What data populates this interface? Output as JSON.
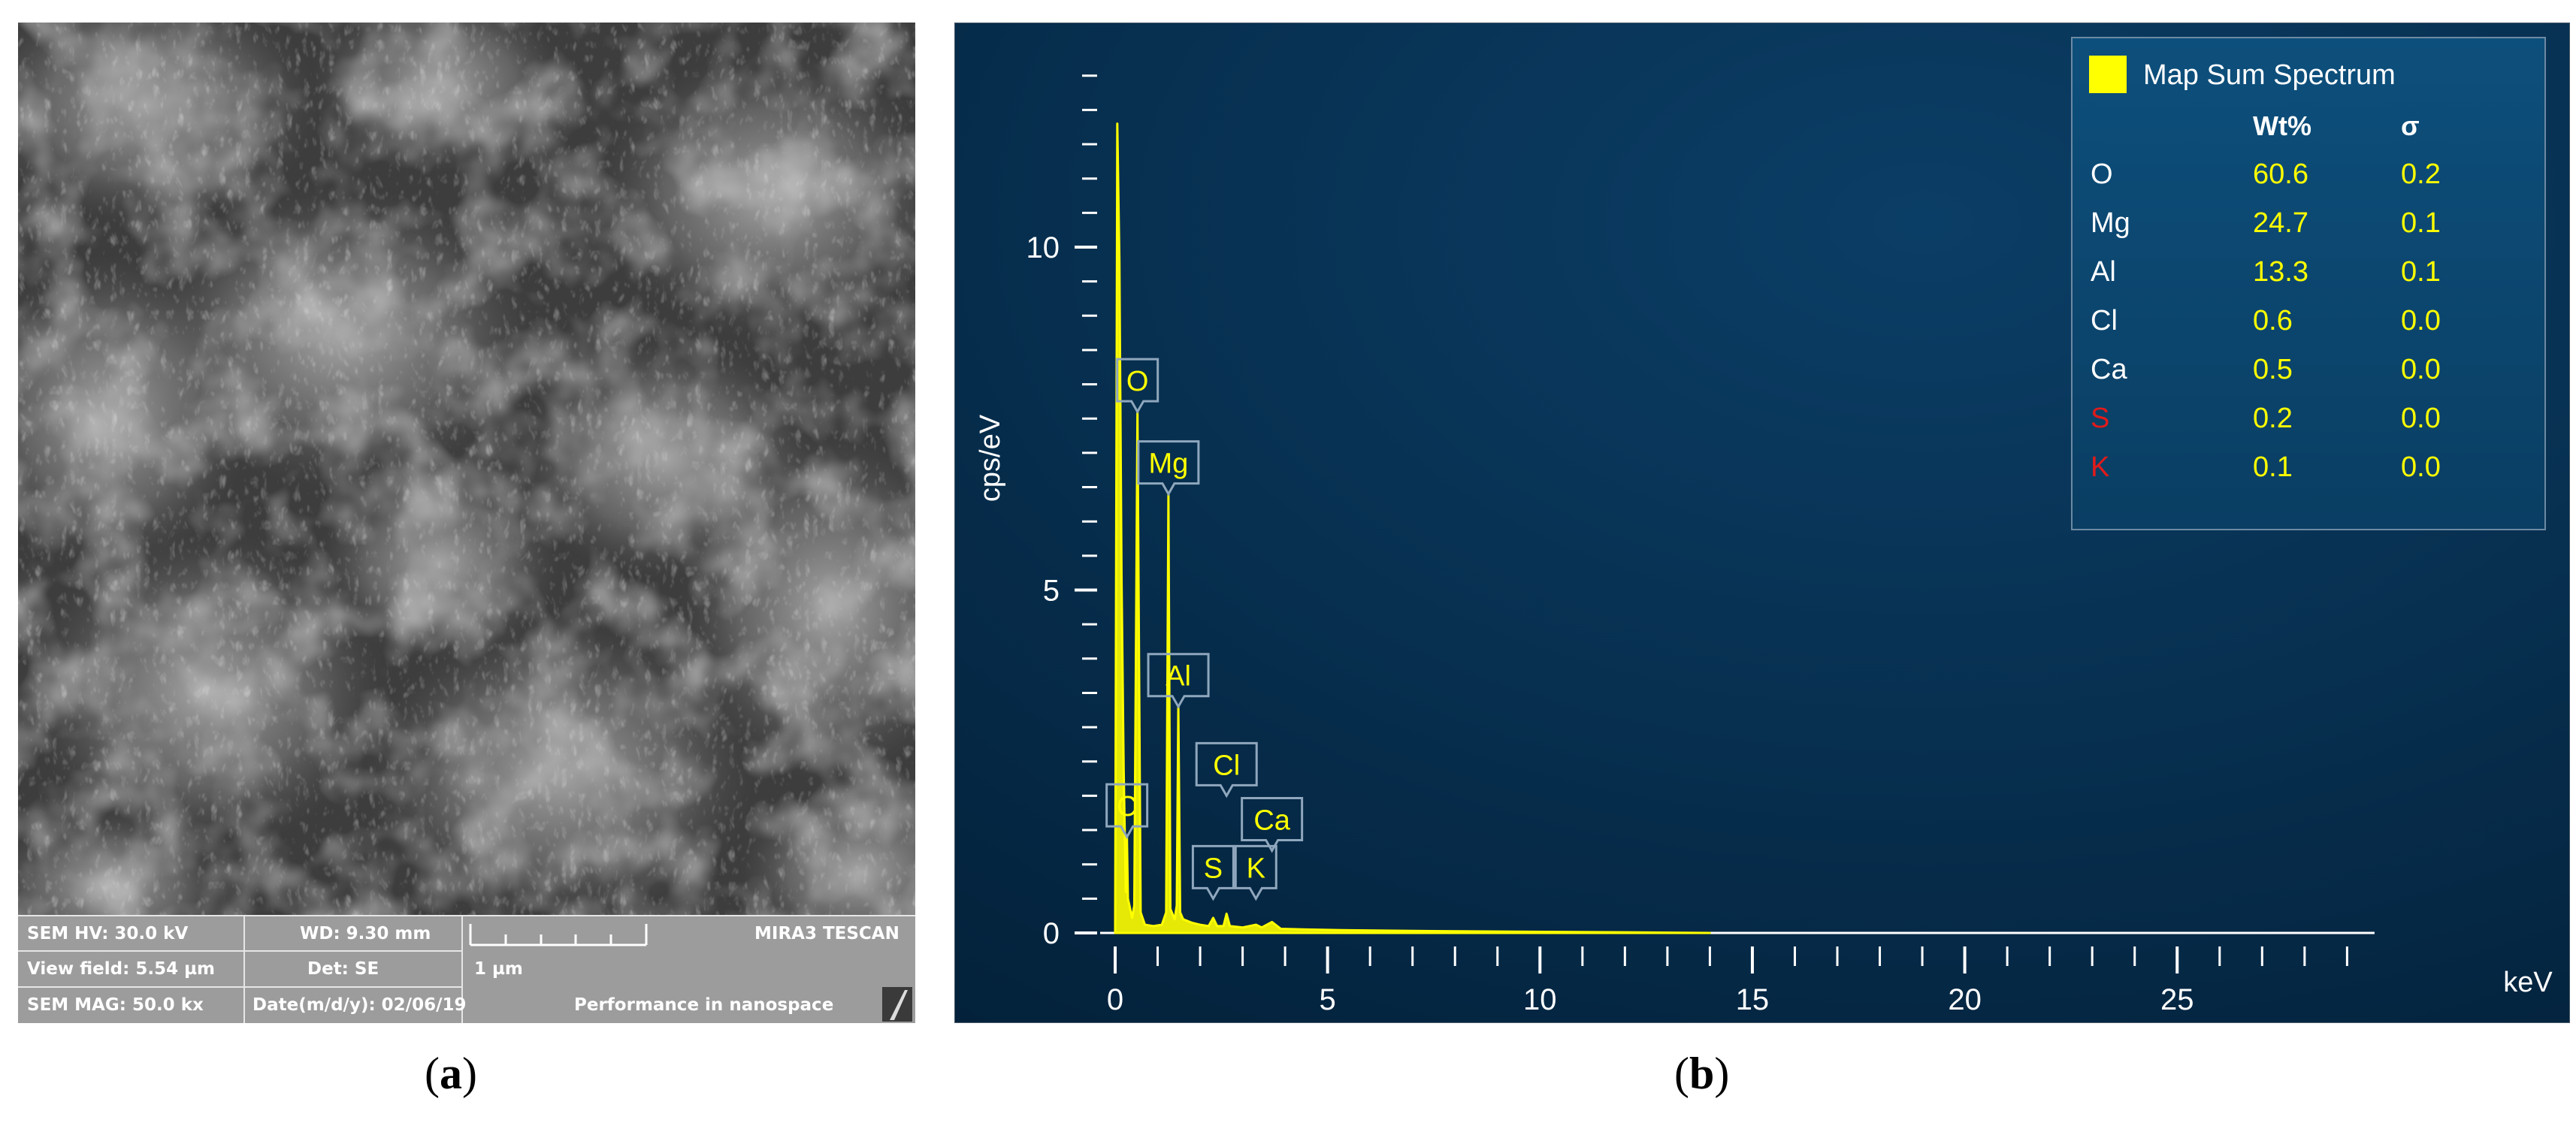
{
  "panel_a": {
    "caption_open": "(",
    "caption_letter": "a",
    "caption_close": ")",
    "info": {
      "hv": "SEM HV: 30.0 kV",
      "wd": "WD: 9.30 mm",
      "brand": "MIRA3 TESCAN",
      "view_field": "View field: 5.54 µm",
      "det": "Det: SE",
      "scale": "1 µm",
      "mag": "SEM MAG: 50.0 kx",
      "date": "Date(m/d/y): 02/06/19",
      "slogan": "Performance in nanospace"
    }
  },
  "panel_b": {
    "caption_open": "(",
    "caption_letter": "b",
    "caption_close": ")"
  },
  "colors": {
    "bg_top": "#0b3e66",
    "bg_bottom": "#03213a",
    "spectrum": "#ffff00",
    "label_text": "#ffff00",
    "red_text": "#e01b1b"
  },
  "chart_data": {
    "type": "line",
    "title": "",
    "xlabel": "keV",
    "ylabel": "cps/eV",
    "xlim": [
      0,
      30
    ],
    "ylim": [
      0,
      12.5
    ],
    "x_ticks": [
      0,
      5,
      10,
      15,
      20,
      25
    ],
    "y_ticks": [
      0,
      5,
      10
    ],
    "legend": {
      "label": "Map Sum Spectrum",
      "position": "top-right"
    },
    "series": [
      {
        "name": "Map Sum Spectrum",
        "x": [
          0.0,
          0.05,
          0.1,
          0.15,
          0.2,
          0.25,
          0.277,
          0.3,
          0.4,
          0.45,
          0.525,
          0.6,
          0.7,
          0.9,
          1.1,
          1.2,
          1.254,
          1.3,
          1.4,
          1.45,
          1.487,
          1.53,
          1.6,
          1.8,
          2.0,
          2.2,
          2.307,
          2.4,
          2.55,
          2.622,
          2.7,
          3.0,
          3.313,
          3.45,
          3.691,
          3.9,
          4.5,
          5.5,
          7.0,
          9.0,
          12.0,
          14.0
        ],
        "y": [
          0.1,
          11.8,
          9.8,
          5.2,
          2.4,
          0.6,
          1.4,
          0.5,
          0.22,
          0.4,
          7.6,
          0.3,
          0.12,
          0.1,
          0.12,
          0.3,
          6.4,
          0.35,
          0.2,
          0.4,
          3.3,
          0.3,
          0.2,
          0.15,
          0.12,
          0.1,
          0.22,
          0.1,
          0.1,
          0.28,
          0.1,
          0.08,
          0.12,
          0.08,
          0.16,
          0.06,
          0.05,
          0.04,
          0.03,
          0.02,
          0.01,
          0.0
        ]
      }
    ],
    "peak_labels": [
      {
        "text": "C",
        "x": 0.277,
        "y": 1.4
      },
      {
        "text": "O",
        "x": 0.525,
        "y": 7.6
      },
      {
        "text": "Mg",
        "x": 1.254,
        "y": 6.4
      },
      {
        "text": "Al",
        "x": 1.487,
        "y": 3.3
      },
      {
        "text": "Cl",
        "x": 2.622,
        "y": 2.0
      },
      {
        "text": "S",
        "x": 2.307,
        "y": 0.5
      },
      {
        "text": "K",
        "x": 3.313,
        "y": 0.5
      },
      {
        "text": "Ca",
        "x": 3.691,
        "y": 1.2
      }
    ],
    "table": {
      "headers": [
        "",
        "Wt%",
        "σ"
      ],
      "rows": [
        {
          "element": "O",
          "wt": "60.6",
          "sigma": "0.2",
          "highlight": false
        },
        {
          "element": "Mg",
          "wt": "24.7",
          "sigma": "0.1",
          "highlight": false
        },
        {
          "element": "Al",
          "wt": "13.3",
          "sigma": "0.1",
          "highlight": false
        },
        {
          "element": "Cl",
          "wt": "0.6",
          "sigma": "0.0",
          "highlight": false
        },
        {
          "element": "Ca",
          "wt": "0.5",
          "sigma": "0.0",
          "highlight": false
        },
        {
          "element": "S",
          "wt": "0.2",
          "sigma": "0.0",
          "highlight": true
        },
        {
          "element": "K",
          "wt": "0.1",
          "sigma": "0.0",
          "highlight": true
        }
      ]
    }
  }
}
